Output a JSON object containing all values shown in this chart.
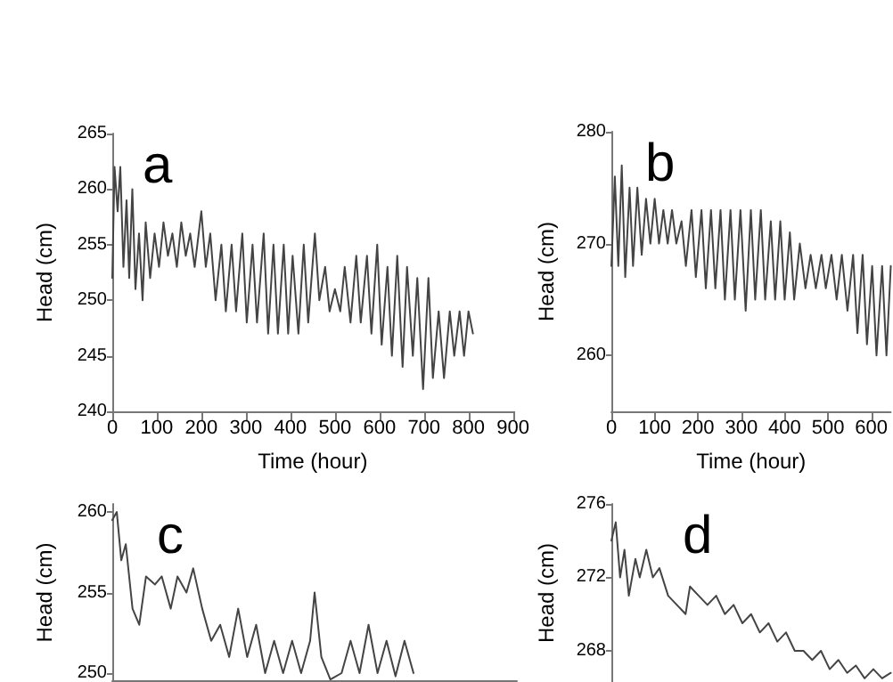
{
  "chart_data": [
    {
      "type": "line",
      "title": "a",
      "xlabel": "Time (hour)",
      "ylabel": "Head (cm)",
      "xlim": [
        0,
        900
      ],
      "xticks": [
        0,
        100,
        200,
        300,
        400,
        500,
        600,
        700,
        800,
        900
      ],
      "ylim": [
        240,
        265
      ],
      "yticks": [
        240,
        245,
        250,
        255,
        260,
        265
      ],
      "marker": "none",
      "line_style": "solid",
      "series": [
        {
          "color": "#444444",
          "x": [
            0,
            5,
            12,
            18,
            25,
            32,
            38,
            45,
            52,
            60,
            68,
            75,
            85,
            95,
            105,
            115,
            125,
            135,
            145,
            155,
            165,
            175,
            185,
            200,
            210,
            220,
            232,
            245,
            255,
            268,
            278,
            292,
            302,
            315,
            325,
            340,
            350,
            362,
            372,
            385,
            395,
            405,
            418,
            430,
            440,
            455,
            465,
            478,
            488,
            500,
            512,
            522,
            535,
            548,
            558,
            572,
            582,
            595,
            605,
            618,
            628,
            640,
            652,
            662,
            675,
            685,
            698,
            710,
            720,
            733,
            745,
            758,
            768,
            780,
            790,
            800,
            810
          ],
          "values": [
            252,
            262,
            258,
            262,
            253,
            259,
            252,
            260,
            251,
            256,
            250,
            257,
            252,
            256,
            253,
            257,
            254,
            256,
            253,
            257,
            254,
            256,
            253,
            258,
            253,
            256,
            250,
            255,
            249,
            255,
            249,
            256,
            248,
            255,
            248,
            256,
            247,
            255,
            247,
            255,
            247,
            254,
            247,
            255,
            248,
            256,
            250,
            253,
            249,
            251,
            249,
            253,
            248,
            254,
            248,
            254,
            247,
            255,
            246,
            253,
            245,
            254,
            244,
            253,
            245,
            252,
            242,
            252,
            243,
            249,
            243,
            249,
            245,
            249,
            245,
            249,
            247
          ]
        }
      ]
    },
    {
      "type": "line",
      "title": "b",
      "xlabel": "Time (hour)",
      "ylabel": "Head (cm)",
      "xlim": [
        0,
        645
      ],
      "xticks": [
        0,
        100,
        200,
        300,
        400,
        500,
        600
      ],
      "ylim": [
        255,
        280
      ],
      "yticks": [
        260,
        270,
        280
      ],
      "marker": "none",
      "line_style": "solid",
      "series": [
        {
          "color": "#444444",
          "x": [
            0,
            8,
            16,
            24,
            32,
            42,
            50,
            60,
            70,
            80,
            90,
            100,
            110,
            120,
            130,
            140,
            150,
            162,
            172,
            185,
            195,
            208,
            218,
            230,
            240,
            252,
            262,
            275,
            285,
            298,
            310,
            322,
            332,
            345,
            355,
            368,
            378,
            390,
            400,
            412,
            422,
            435,
            448,
            460,
            472,
            485,
            495,
            508,
            520,
            532,
            545,
            558,
            568,
            580,
            590,
            602,
            612,
            625,
            635,
            645
          ],
          "values": [
            268,
            276,
            268,
            277,
            267,
            275,
            268,
            275,
            269,
            274,
            270,
            274,
            270,
            273,
            270,
            273,
            270,
            272,
            268,
            273,
            267,
            273,
            266,
            273,
            266,
            273,
            265,
            273,
            265,
            273,
            264,
            273,
            265,
            273,
            265,
            272,
            265,
            272,
            265,
            271,
            265,
            270,
            266,
            269,
            266,
            269,
            266,
            269,
            265,
            269,
            264,
            269,
            262,
            269,
            261,
            268,
            260,
            268,
            260,
            268
          ]
        }
      ]
    },
    {
      "type": "line",
      "title": "c",
      "ylabel": "Head (cm)",
      "xlim": [
        0,
        900
      ],
      "ylim": [
        249.5,
        260.5
      ],
      "yticks": [
        250,
        255,
        260
      ],
      "tick_labels": "y",
      "marker": "none",
      "line_style": "solid",
      "series": [
        {
          "color": "#444444",
          "x": [
            0,
            10,
            20,
            30,
            45,
            60,
            75,
            95,
            110,
            130,
            145,
            165,
            180,
            200,
            220,
            240,
            260,
            280,
            300,
            320,
            340,
            360,
            380,
            400,
            420,
            440,
            450,
            465,
            485,
            510,
            530,
            550,
            570,
            590,
            610,
            630,
            650,
            670
          ],
          "values": [
            259.5,
            260,
            257,
            258,
            254,
            253,
            256,
            255.5,
            256,
            254,
            256,
            255,
            256.5,
            254,
            252,
            253,
            251,
            254,
            251,
            253,
            250,
            252,
            250,
            252,
            250,
            252,
            255,
            251,
            249.6,
            250,
            252,
            250,
            253,
            250,
            252,
            249.8,
            252,
            250
          ]
        }
      ]
    },
    {
      "type": "line",
      "title": "d",
      "ylabel": "Head (cm)",
      "xlim": [
        0,
        645
      ],
      "ylim": [
        266.3,
        276
      ],
      "yticks": [
        268,
        272,
        276
      ],
      "tick_labels": "y",
      "marker": "none",
      "line_style": "solid",
      "series": [
        {
          "color": "#444444",
          "x": [
            0,
            10,
            20,
            30,
            40,
            55,
            65,
            80,
            95,
            110,
            130,
            150,
            170,
            180,
            200,
            220,
            240,
            260,
            280,
            300,
            320,
            340,
            360,
            380,
            400,
            420,
            440,
            460,
            480,
            500,
            520,
            540,
            560,
            580,
            600,
            620,
            640
          ],
          "values": [
            274,
            275,
            272,
            273.5,
            271,
            273,
            272,
            273.5,
            272,
            272.5,
            271,
            270.5,
            270,
            271.5,
            271,
            270.5,
            271,
            270,
            270.5,
            269.5,
            270,
            269,
            269.5,
            268.5,
            269,
            268,
            268,
            267.5,
            268,
            267,
            267.5,
            266.8,
            267.2,
            266.5,
            267,
            266.5,
            266.8
          ]
        }
      ]
    }
  ]
}
